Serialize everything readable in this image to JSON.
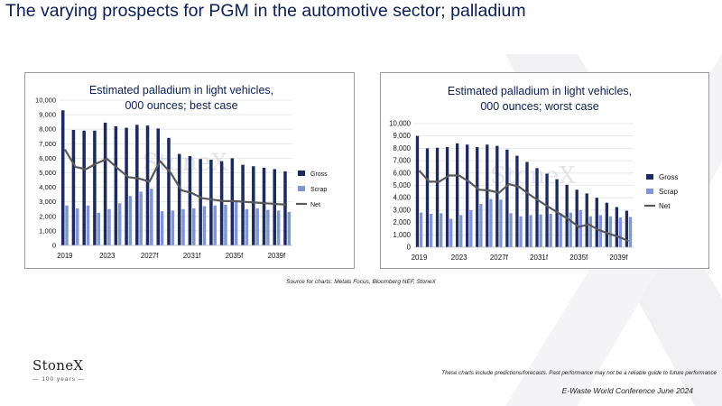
{
  "page": {
    "title": "The varying prospects for PGM in the automotive sector; palladium",
    "source": "Source for charts: Metals Focus, Bloomberg NEF, StoneX",
    "brand_name": "StoneX",
    "brand_tagline": "100 years",
    "disclaimer": "These charts include predictions/forecasts. Past performance may not be a reliable guide to future performance",
    "conference": "E-Waste World Conference June 2024",
    "watermark": "StoneX"
  },
  "colors": {
    "gross": "#1c2a5e",
    "scrap": "#7f95d6",
    "net": "#595959",
    "title": "#0b1d51"
  },
  "chart_data": [
    {
      "type": "bar",
      "title": [
        "Estimated palladium in light vehicles,",
        "000 ounces; best case"
      ],
      "categories": [
        "2019",
        "2020",
        "2021",
        "2022",
        "2023",
        "2024",
        "2025",
        "2026",
        "2027f",
        "2028",
        "2029",
        "2030",
        "2031f",
        "2032",
        "2033",
        "2034",
        "2035f",
        "2036",
        "2037",
        "2038",
        "2039f",
        "2040"
      ],
      "x_tick_labels": [
        "2019",
        "2023",
        "2027f",
        "2031f",
        "2035f",
        "2039f"
      ],
      "ylim": [
        0,
        10000
      ],
      "y_ticks": [
        "0",
        "1,000",
        "2,000",
        "3,000",
        "4,000",
        "5,000",
        "6,000",
        "7,000",
        "8,000",
        "9,000",
        "10,000"
      ],
      "legend_position": "right",
      "series": [
        {
          "name": "Gross",
          "kind": "bar",
          "values": [
            9300,
            7950,
            7900,
            7900,
            8450,
            8200,
            8100,
            8300,
            8250,
            8050,
            7400,
            6300,
            6150,
            5950,
            5900,
            5800,
            6000,
            5550,
            5450,
            5350,
            5250,
            5100
          ]
        },
        {
          "name": "Scrap",
          "kind": "bar",
          "values": [
            2750,
            2550,
            2750,
            2250,
            2500,
            2900,
            3400,
            3700,
            3900,
            2350,
            2400,
            2500,
            2550,
            2700,
            2750,
            2800,
            3000,
            2500,
            2550,
            2450,
            2400,
            2300
          ]
        },
        {
          "name": "Net",
          "kind": "line",
          "values": [
            6600,
            5400,
            5250,
            5650,
            5950,
            5300,
            4700,
            4600,
            4400,
            5800,
            5000,
            3800,
            3600,
            3250,
            3150,
            3050,
            3050,
            3000,
            2950,
            2900,
            2850,
            2800
          ]
        }
      ]
    },
    {
      "type": "bar",
      "title": [
        "Estimated palladium in light vehicles,",
        "000 ounces; worst case"
      ],
      "categories": [
        "2019",
        "2020",
        "2021",
        "2022",
        "2023",
        "2024",
        "2025",
        "2026",
        "2027f",
        "2028",
        "2029",
        "2030",
        "2031f",
        "2032",
        "2033",
        "2034",
        "2035f",
        "2036",
        "2037",
        "2038",
        "2039f",
        "2040"
      ],
      "x_tick_labels": [
        "2019",
        "2023",
        "2027f",
        "2031f",
        "2035f",
        "2039f"
      ],
      "ylim": [
        0,
        10000
      ],
      "y_ticks": [
        "0",
        "1,000",
        "2,000",
        "3,000",
        "4,000",
        "5,000",
        "6,000",
        "7,000",
        "8,000",
        "9,000",
        "10,000"
      ],
      "legend_position": "right",
      "series": [
        {
          "name": "Gross",
          "kind": "bar",
          "values": [
            9000,
            8000,
            8050,
            8100,
            8400,
            8300,
            8100,
            8300,
            8200,
            7900,
            7400,
            6900,
            6400,
            5950,
            5500,
            5050,
            4650,
            4350,
            4000,
            3600,
            3250,
            2950
          ]
        },
        {
          "name": "Scrap",
          "kind": "bar",
          "values": [
            2800,
            2700,
            2750,
            2300,
            2600,
            3000,
            3500,
            3900,
            3850,
            2750,
            2500,
            2600,
            2650,
            2700,
            2750,
            2800,
            3000,
            2500,
            2600,
            2500,
            2400,
            2450
          ]
        },
        {
          "name": "Net",
          "kind": "line",
          "values": [
            6200,
            5300,
            5300,
            5800,
            5800,
            5300,
            4650,
            4600,
            4400,
            5100,
            4900,
            4300,
            3750,
            3250,
            2750,
            2250,
            1650,
            1850,
            1400,
            1100,
            850,
            500
          ]
        }
      ]
    }
  ]
}
